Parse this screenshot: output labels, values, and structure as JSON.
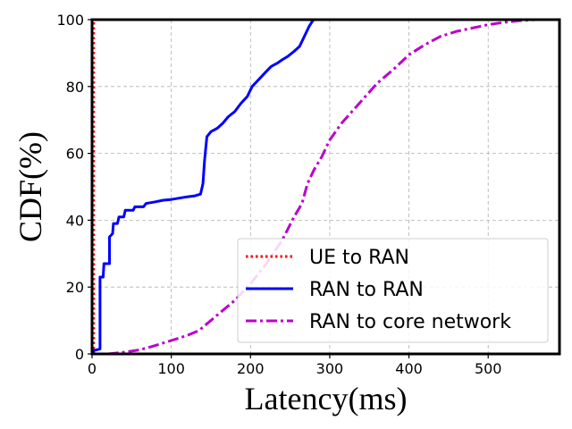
{
  "chart_data": {
    "type": "line",
    "title": "",
    "xlabel": "Latency(ms)",
    "ylabel": "CDF(%)",
    "xlim": [
      0,
      590
    ],
    "ylim": [
      0,
      100
    ],
    "xticks": [
      0,
      100,
      200,
      300,
      400,
      500
    ],
    "yticks": [
      0,
      20,
      40,
      60,
      80,
      100
    ],
    "grid": true,
    "legend_position": "bottom-right",
    "series": [
      {
        "name": "UE to RAN",
        "color": "#ff0000",
        "style": "dotted",
        "points": [
          [
            2,
            0
          ],
          [
            2,
            100
          ]
        ]
      },
      {
        "name": "RAN to RAN",
        "color": "#0000ff",
        "style": "solid",
        "points": [
          [
            1,
            0
          ],
          [
            2,
            1
          ],
          [
            10,
            1.5
          ],
          [
            10,
            23
          ],
          [
            14,
            23
          ],
          [
            15,
            27
          ],
          [
            22,
            27
          ],
          [
            22,
            35
          ],
          [
            26,
            36
          ],
          [
            27,
            39
          ],
          [
            32,
            39
          ],
          [
            34,
            41
          ],
          [
            40,
            41
          ],
          [
            42,
            43
          ],
          [
            52,
            43
          ],
          [
            54,
            44
          ],
          [
            65,
            44
          ],
          [
            68,
            45
          ],
          [
            80,
            45.5
          ],
          [
            90,
            46
          ],
          [
            100,
            46.2
          ],
          [
            110,
            46.6
          ],
          [
            120,
            47
          ],
          [
            130,
            47.3
          ],
          [
            137,
            47.8
          ],
          [
            140,
            51
          ],
          [
            142,
            58
          ],
          [
            145,
            65
          ],
          [
            150,
            66.5
          ],
          [
            158,
            67.5
          ],
          [
            165,
            69
          ],
          [
            172,
            71
          ],
          [
            180,
            72.5
          ],
          [
            188,
            75
          ],
          [
            196,
            77
          ],
          [
            202,
            80
          ],
          [
            210,
            82
          ],
          [
            218,
            84
          ],
          [
            226,
            86
          ],
          [
            234,
            87
          ],
          [
            240,
            88
          ],
          [
            247,
            89
          ],
          [
            255,
            90.5
          ],
          [
            262,
            92
          ],
          [
            266,
            94
          ],
          [
            270,
            96
          ],
          [
            274,
            98
          ],
          [
            278,
            99.5
          ],
          [
            280,
            100
          ]
        ]
      },
      {
        "name": "RAN to core network",
        "color": "#bb00cc",
        "style": "dashdot",
        "points": [
          [
            20,
            0
          ],
          [
            40,
            0.5
          ],
          [
            60,
            1.2
          ],
          [
            80,
            2.5
          ],
          [
            100,
            4
          ],
          [
            120,
            5.5
          ],
          [
            135,
            7
          ],
          [
            145,
            9
          ],
          [
            160,
            12
          ],
          [
            180,
            16
          ],
          [
            200,
            21
          ],
          [
            220,
            27
          ],
          [
            240,
            34
          ],
          [
            255,
            41
          ],
          [
            265,
            45
          ],
          [
            272,
            51
          ],
          [
            280,
            55
          ],
          [
            290,
            59
          ],
          [
            300,
            64
          ],
          [
            315,
            69
          ],
          [
            330,
            73
          ],
          [
            345,
            77
          ],
          [
            360,
            81
          ],
          [
            380,
            85
          ],
          [
            400,
            89.5
          ],
          [
            420,
            92.5
          ],
          [
            440,
            95
          ],
          [
            460,
            96.5
          ],
          [
            480,
            97.5
          ],
          [
            500,
            98.5
          ],
          [
            520,
            99.2
          ],
          [
            540,
            99.7
          ],
          [
            560,
            100
          ]
        ]
      }
    ]
  }
}
